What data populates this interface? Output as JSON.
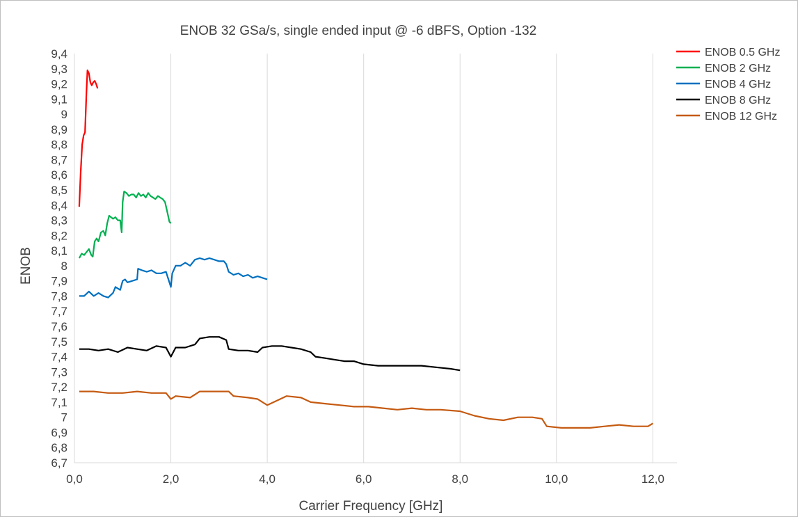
{
  "chart_data": {
    "type": "line",
    "title": "ENOB 32 GSa/s, single ended input @ -6 dBFS, Option -132",
    "xlabel": "Carrier Frequency [GHz]",
    "ylabel": "ENOB",
    "xlim": [
      0,
      12.5
    ],
    "ylim": [
      6.7,
      9.4
    ],
    "x_ticks": [
      0,
      2,
      4,
      6,
      8,
      10,
      12
    ],
    "x_tick_labels": [
      "0,0",
      "2,0",
      "4,0",
      "6,0",
      "8,0",
      "10,0",
      "12,0"
    ],
    "y_ticks": [
      6.7,
      6.8,
      6.9,
      7.0,
      7.1,
      7.2,
      7.3,
      7.4,
      7.5,
      7.6,
      7.7,
      7.8,
      7.9,
      8.0,
      8.1,
      8.2,
      8.3,
      8.4,
      8.5,
      8.6,
      8.7,
      8.8,
      8.9,
      9.0,
      9.1,
      9.2,
      9.3,
      9.4
    ],
    "y_tick_labels": [
      "6,7",
      "6,8",
      "6,9",
      "7",
      "7,1",
      "7,2",
      "7,3",
      "7,4",
      "7,5",
      "7,6",
      "7,7",
      "7,8",
      "7,9",
      "8",
      "8,1",
      "8,2",
      "8,3",
      "8,4",
      "8,5",
      "8,6",
      "8,7",
      "8,8",
      "8,9",
      "9",
      "9,1",
      "9,2",
      "9,3",
      "9,4"
    ],
    "grid": "vertical",
    "legend_position": "top-right",
    "series": [
      {
        "name": "ENOB 0.5 GHz",
        "color": "#ff0000",
        "points": [
          [
            0.1,
            8.39
          ],
          [
            0.13,
            8.62
          ],
          [
            0.16,
            8.8
          ],
          [
            0.19,
            8.86
          ],
          [
            0.22,
            8.88
          ],
          [
            0.25,
            9.15
          ],
          [
            0.27,
            9.29
          ],
          [
            0.3,
            9.27
          ],
          [
            0.33,
            9.21
          ],
          [
            0.36,
            9.19
          ],
          [
            0.39,
            9.21
          ],
          [
            0.42,
            9.22
          ],
          [
            0.45,
            9.2
          ],
          [
            0.48,
            9.17
          ]
        ]
      },
      {
        "name": "ENOB 2 GHz",
        "color": "#00b050",
        "points": [
          [
            0.1,
            8.05
          ],
          [
            0.15,
            8.08
          ],
          [
            0.2,
            8.07
          ],
          [
            0.25,
            8.09
          ],
          [
            0.3,
            8.11
          ],
          [
            0.35,
            8.07
          ],
          [
            0.38,
            8.06
          ],
          [
            0.42,
            8.16
          ],
          [
            0.46,
            8.18
          ],
          [
            0.5,
            8.16
          ],
          [
            0.55,
            8.22
          ],
          [
            0.6,
            8.23
          ],
          [
            0.64,
            8.2
          ],
          [
            0.68,
            8.28
          ],
          [
            0.72,
            8.33
          ],
          [
            0.76,
            8.32
          ],
          [
            0.8,
            8.31
          ],
          [
            0.85,
            8.32
          ],
          [
            0.9,
            8.3
          ],
          [
            0.95,
            8.3
          ],
          [
            0.98,
            8.22
          ],
          [
            1.0,
            8.42
          ],
          [
            1.03,
            8.49
          ],
          [
            1.08,
            8.48
          ],
          [
            1.13,
            8.46
          ],
          [
            1.18,
            8.47
          ],
          [
            1.23,
            8.47
          ],
          [
            1.28,
            8.45
          ],
          [
            1.33,
            8.48
          ],
          [
            1.38,
            8.46
          ],
          [
            1.43,
            8.47
          ],
          [
            1.48,
            8.45
          ],
          [
            1.53,
            8.48
          ],
          [
            1.58,
            8.46
          ],
          [
            1.63,
            8.45
          ],
          [
            1.68,
            8.44
          ],
          [
            1.73,
            8.46
          ],
          [
            1.78,
            8.45
          ],
          [
            1.83,
            8.44
          ],
          [
            1.88,
            8.42
          ],
          [
            1.93,
            8.35
          ],
          [
            1.97,
            8.29
          ],
          [
            2.0,
            8.28
          ]
        ]
      },
      {
        "name": "ENOB 4 GHz",
        "color": "#0070c0",
        "points": [
          [
            0.1,
            7.8
          ],
          [
            0.2,
            7.8
          ],
          [
            0.3,
            7.83
          ],
          [
            0.4,
            7.8
          ],
          [
            0.5,
            7.82
          ],
          [
            0.6,
            7.8
          ],
          [
            0.7,
            7.79
          ],
          [
            0.8,
            7.82
          ],
          [
            0.85,
            7.86
          ],
          [
            0.95,
            7.84
          ],
          [
            1.0,
            7.9
          ],
          [
            1.05,
            7.91
          ],
          [
            1.1,
            7.89
          ],
          [
            1.2,
            7.9
          ],
          [
            1.3,
            7.91
          ],
          [
            1.32,
            7.98
          ],
          [
            1.4,
            7.97
          ],
          [
            1.5,
            7.96
          ],
          [
            1.6,
            7.97
          ],
          [
            1.7,
            7.95
          ],
          [
            1.8,
            7.95
          ],
          [
            1.9,
            7.96
          ],
          [
            1.95,
            7.91
          ],
          [
            2.0,
            7.86
          ],
          [
            2.03,
            7.95
          ],
          [
            2.1,
            8.0
          ],
          [
            2.2,
            8.0
          ],
          [
            2.3,
            8.02
          ],
          [
            2.4,
            8.0
          ],
          [
            2.5,
            8.04
          ],
          [
            2.6,
            8.05
          ],
          [
            2.7,
            8.04
          ],
          [
            2.8,
            8.05
          ],
          [
            2.9,
            8.04
          ],
          [
            3.0,
            8.03
          ],
          [
            3.1,
            8.03
          ],
          [
            3.15,
            8.01
          ],
          [
            3.2,
            7.96
          ],
          [
            3.3,
            7.94
          ],
          [
            3.4,
            7.95
          ],
          [
            3.5,
            7.93
          ],
          [
            3.6,
            7.94
          ],
          [
            3.7,
            7.92
          ],
          [
            3.8,
            7.93
          ],
          [
            3.9,
            7.92
          ],
          [
            4.0,
            7.91
          ]
        ]
      },
      {
        "name": "ENOB 8 GHz",
        "color": "#000000",
        "points": [
          [
            0.1,
            7.45
          ],
          [
            0.3,
            7.45
          ],
          [
            0.5,
            7.44
          ],
          [
            0.7,
            7.45
          ],
          [
            0.9,
            7.43
          ],
          [
            1.1,
            7.46
          ],
          [
            1.3,
            7.45
          ],
          [
            1.5,
            7.44
          ],
          [
            1.7,
            7.47
          ],
          [
            1.9,
            7.46
          ],
          [
            2.0,
            7.4
          ],
          [
            2.1,
            7.46
          ],
          [
            2.3,
            7.46
          ],
          [
            2.5,
            7.48
          ],
          [
            2.6,
            7.52
          ],
          [
            2.8,
            7.53
          ],
          [
            3.0,
            7.53
          ],
          [
            3.15,
            7.51
          ],
          [
            3.2,
            7.45
          ],
          [
            3.4,
            7.44
          ],
          [
            3.6,
            7.44
          ],
          [
            3.8,
            7.43
          ],
          [
            3.9,
            7.46
          ],
          [
            4.1,
            7.47
          ],
          [
            4.3,
            7.47
          ],
          [
            4.5,
            7.46
          ],
          [
            4.7,
            7.45
          ],
          [
            4.9,
            7.43
          ],
          [
            5.0,
            7.4
          ],
          [
            5.2,
            7.39
          ],
          [
            5.4,
            7.38
          ],
          [
            5.6,
            7.37
          ],
          [
            5.8,
            7.37
          ],
          [
            6.0,
            7.35
          ],
          [
            6.3,
            7.34
          ],
          [
            6.6,
            7.34
          ],
          [
            6.9,
            7.34
          ],
          [
            7.2,
            7.34
          ],
          [
            7.5,
            7.33
          ],
          [
            7.8,
            7.32
          ],
          [
            8.0,
            7.31
          ]
        ]
      },
      {
        "name": "ENOB 12 GHz",
        "color": "#c55a11",
        "points": [
          [
            0.1,
            7.17
          ],
          [
            0.4,
            7.17
          ],
          [
            0.7,
            7.16
          ],
          [
            1.0,
            7.16
          ],
          [
            1.3,
            7.17
          ],
          [
            1.6,
            7.16
          ],
          [
            1.9,
            7.16
          ],
          [
            2.0,
            7.12
          ],
          [
            2.1,
            7.14
          ],
          [
            2.4,
            7.13
          ],
          [
            2.6,
            7.17
          ],
          [
            2.9,
            7.17
          ],
          [
            3.2,
            7.17
          ],
          [
            3.3,
            7.14
          ],
          [
            3.6,
            7.13
          ],
          [
            3.8,
            7.12
          ],
          [
            3.9,
            7.1
          ],
          [
            4.0,
            7.08
          ],
          [
            4.2,
            7.11
          ],
          [
            4.4,
            7.14
          ],
          [
            4.7,
            7.13
          ],
          [
            4.9,
            7.1
          ],
          [
            5.2,
            7.09
          ],
          [
            5.5,
            7.08
          ],
          [
            5.8,
            7.07
          ],
          [
            6.1,
            7.07
          ],
          [
            6.4,
            7.06
          ],
          [
            6.7,
            7.05
          ],
          [
            7.0,
            7.06
          ],
          [
            7.3,
            7.05
          ],
          [
            7.6,
            7.05
          ],
          [
            8.0,
            7.04
          ],
          [
            8.3,
            7.01
          ],
          [
            8.6,
            6.99
          ],
          [
            8.9,
            6.98
          ],
          [
            9.2,
            7.0
          ],
          [
            9.5,
            7.0
          ],
          [
            9.7,
            6.99
          ],
          [
            9.8,
            6.94
          ],
          [
            10.1,
            6.93
          ],
          [
            10.4,
            6.93
          ],
          [
            10.7,
            6.93
          ],
          [
            11.0,
            6.94
          ],
          [
            11.3,
            6.95
          ],
          [
            11.6,
            6.94
          ],
          [
            11.9,
            6.94
          ],
          [
            12.0,
            6.96
          ]
        ]
      }
    ]
  }
}
